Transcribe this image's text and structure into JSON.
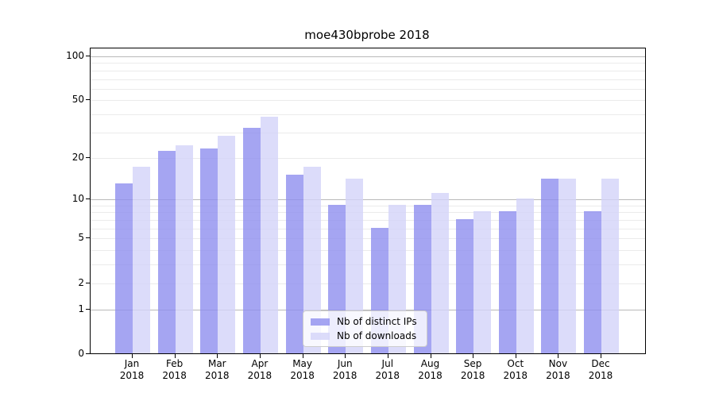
{
  "chart_data": {
    "type": "bar",
    "title": "moe430bprobe 2018",
    "categories": [
      "Jan",
      "Feb",
      "Mar",
      "Apr",
      "May",
      "Jun",
      "Jul",
      "Aug",
      "Sep",
      "Oct",
      "Nov",
      "Dec"
    ],
    "year": "2018",
    "series": [
      {
        "name": "Nb of distinct IPs",
        "color": "rgba(142,142,239,0.8)",
        "values": [
          13,
          22,
          23,
          32,
          15,
          9,
          6,
          9,
          7,
          8,
          14,
          8
        ]
      },
      {
        "name": "Nb of downloads",
        "color": "rgba(211,211,249,0.8)",
        "values": [
          17,
          24,
          28,
          38,
          17,
          14,
          9,
          11,
          8,
          10,
          14,
          14
        ]
      }
    ],
    "xlabel": "",
    "ylabel": "",
    "y_scale": "log10(1+y)",
    "y_ticks": [
      0,
      1,
      2,
      5,
      10,
      20,
      50,
      100
    ],
    "ylim": [
      0,
      113
    ],
    "grid": "both, horizontal only, major lines at 1/10/100 darker",
    "legend_position": "lower center",
    "bar_colors": {
      "distinct_ips_on_white": "#a5a5f2",
      "downloads_on_white": "#dcdcfa"
    },
    "axis_color": "#000000"
  }
}
